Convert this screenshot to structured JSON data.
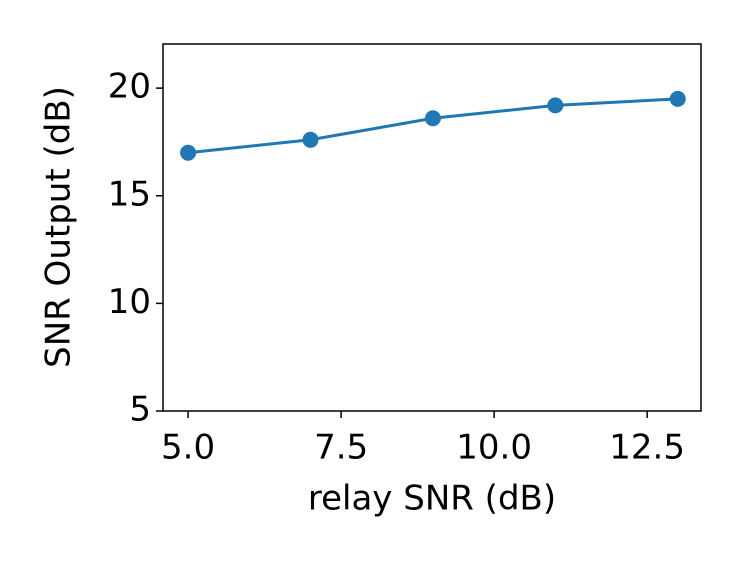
{
  "chart_data": {
    "type": "line",
    "x_label": "relay SNR (dB)",
    "y_label": "SNR Output (dB)",
    "x": [
      5,
      7,
      9,
      11,
      13
    ],
    "series": [
      {
        "color": "#1f77b4",
        "values": [
          17.0,
          17.6,
          18.6,
          19.2,
          19.5
        ]
      }
    ],
    "xlim": [
      4.59,
      13.38
    ],
    "ylim": [
      5,
      22.05
    ],
    "xticks": [
      {
        "value": 5,
        "label": "5.0"
      },
      {
        "value": 7.5,
        "label": "7.5"
      },
      {
        "value": 10,
        "label": "10.0"
      },
      {
        "value": 12.5,
        "label": "12.5"
      }
    ],
    "yticks": [
      5,
      10,
      15,
      20
    ],
    "grid": false
  }
}
